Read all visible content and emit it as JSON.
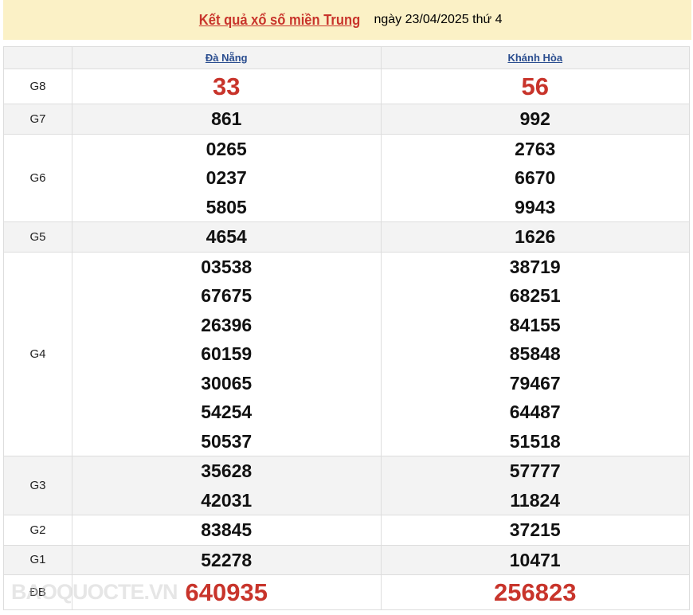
{
  "banner": {
    "link": "Kết quả xổ số miền Trung",
    "date": "ngày 23/04/2025 thứ 4"
  },
  "provinces": [
    "Đà Nẵng",
    "Khánh Hòa"
  ],
  "rows": [
    {
      "label": "G8",
      "big": true,
      "values": [
        [
          "33"
        ],
        [
          "56"
        ]
      ]
    },
    {
      "label": "G7",
      "values": [
        [
          "861"
        ],
        [
          "992"
        ]
      ]
    },
    {
      "label": "G6",
      "values": [
        [
          "0265",
          "0237",
          "5805"
        ],
        [
          "2763",
          "6670",
          "9943"
        ]
      ]
    },
    {
      "label": "G5",
      "values": [
        [
          "4654"
        ],
        [
          "1626"
        ]
      ]
    },
    {
      "label": "G4",
      "values": [
        [
          "03538",
          "67675",
          "26396",
          "60159",
          "30065",
          "54254",
          "50537"
        ],
        [
          "38719",
          "68251",
          "84155",
          "85848",
          "79467",
          "64487",
          "51518"
        ]
      ]
    },
    {
      "label": "G3",
      "values": [
        [
          "35628",
          "42031"
        ],
        [
          "57777",
          "11824"
        ]
      ]
    },
    {
      "label": "G2",
      "values": [
        [
          "83845"
        ],
        [
          "37215"
        ]
      ]
    },
    {
      "label": "G1",
      "values": [
        [
          "52278"
        ],
        [
          "10471"
        ]
      ]
    },
    {
      "label": "ĐB",
      "big": true,
      "values": [
        [
          "640935"
        ],
        [
          "256823"
        ]
      ]
    }
  ],
  "watermark": "BAOQUOCTE.VN",
  "colors": {
    "accent": "#c8342b",
    "link": "#2a4d8f",
    "banner": "#fbf1c6"
  }
}
